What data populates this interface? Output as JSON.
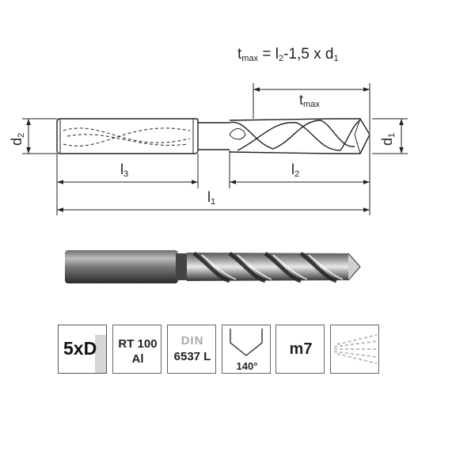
{
  "formula": {
    "t": "t",
    "t_sub": "max",
    "eq": " = l",
    "l_sub": "2",
    "rest": "-1,5 x d",
    "d_sub": "1"
  },
  "dimensions": {
    "d2": {
      "base": "d",
      "sub": "2"
    },
    "d1": {
      "base": "d",
      "sub": "1"
    },
    "tmax": {
      "base": "t",
      "sub": "max"
    },
    "l3": {
      "base": "l",
      "sub": "3"
    },
    "l2": {
      "base": "l",
      "sub": "2"
    },
    "l1": {
      "base": "l",
      "sub": "1"
    }
  },
  "icons": {
    "length_ratio": "5xD",
    "coating_line1": "RT 100",
    "coating_line2": "Al",
    "standard_line1": "DIN",
    "standard_line2": "6537 L",
    "point_angle": "140°",
    "shank_tolerance": "m7"
  },
  "colors": {
    "line": "#222222",
    "icon_border": "#666666",
    "din_grey": "#aaaaaa",
    "shadow": "#d6d6d6"
  }
}
